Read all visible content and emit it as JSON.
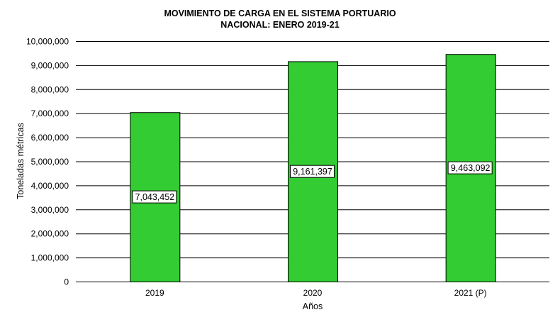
{
  "chart_data": {
    "type": "bar",
    "title": [
      "MOVIMIENTO DE CARGA EN EL SISTEMA PORTUARIO",
      "NACIONAL:  ENERO 2019-21"
    ],
    "categories": [
      "2019",
      "2020",
      "2021 (P)"
    ],
    "values": [
      7043452,
      9161397,
      9463092
    ],
    "data_labels": [
      "7,043,452",
      "9,161,397",
      "9,463,092"
    ],
    "xlabel": "Años",
    "ylabel": "Toneladas  métricas",
    "ylim": [
      0,
      10000000
    ],
    "yticks": [
      0,
      1000000,
      2000000,
      3000000,
      4000000,
      5000000,
      6000000,
      7000000,
      8000000,
      9000000,
      10000000
    ],
    "ytick_labels": [
      "0",
      "1,000,000",
      "2,000,000",
      "3,000,000",
      "4,000,000",
      "5,000,000",
      "6,000,000",
      "7,000,000",
      "8,000,000",
      "9,000,000",
      "10,000,000"
    ],
    "grid": true,
    "legend": "none",
    "bar_color": "#33cc33"
  }
}
